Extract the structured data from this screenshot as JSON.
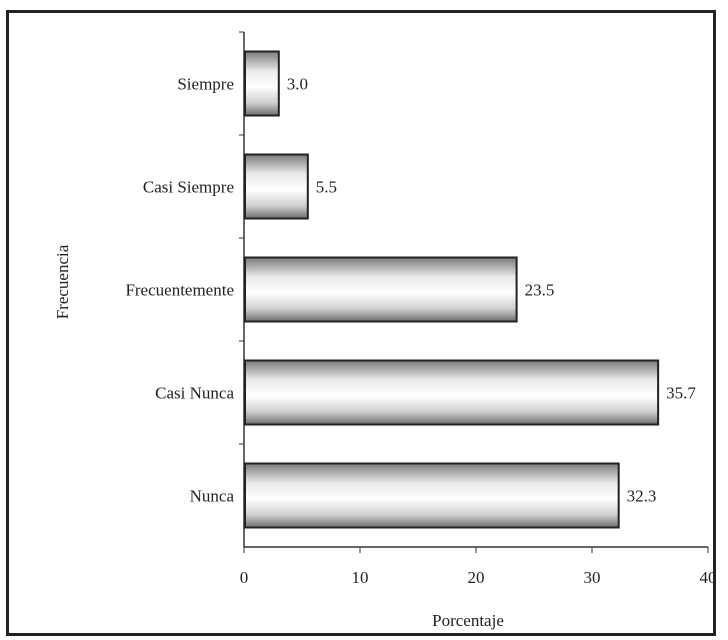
{
  "chart_data": {
    "type": "bar",
    "orientation": "horizontal",
    "categories": [
      "Siempre",
      "Casi Siempre",
      "Frecuentemente",
      "Casi Nunca",
      "Nunca"
    ],
    "values": [
      3.0,
      5.5,
      23.5,
      35.7,
      32.3
    ],
    "value_labels": [
      "3.0",
      "5.5",
      "23.5",
      "35.7",
      "32.3"
    ],
    "xlabel": "Porcentaje",
    "ylabel": "Frecuencia",
    "xlim": [
      0,
      40
    ],
    "xticks": [
      0,
      10,
      20,
      30,
      40
    ],
    "grid": false,
    "bar_fill": "gradient gray-white",
    "bar_stroke": "#222222"
  }
}
